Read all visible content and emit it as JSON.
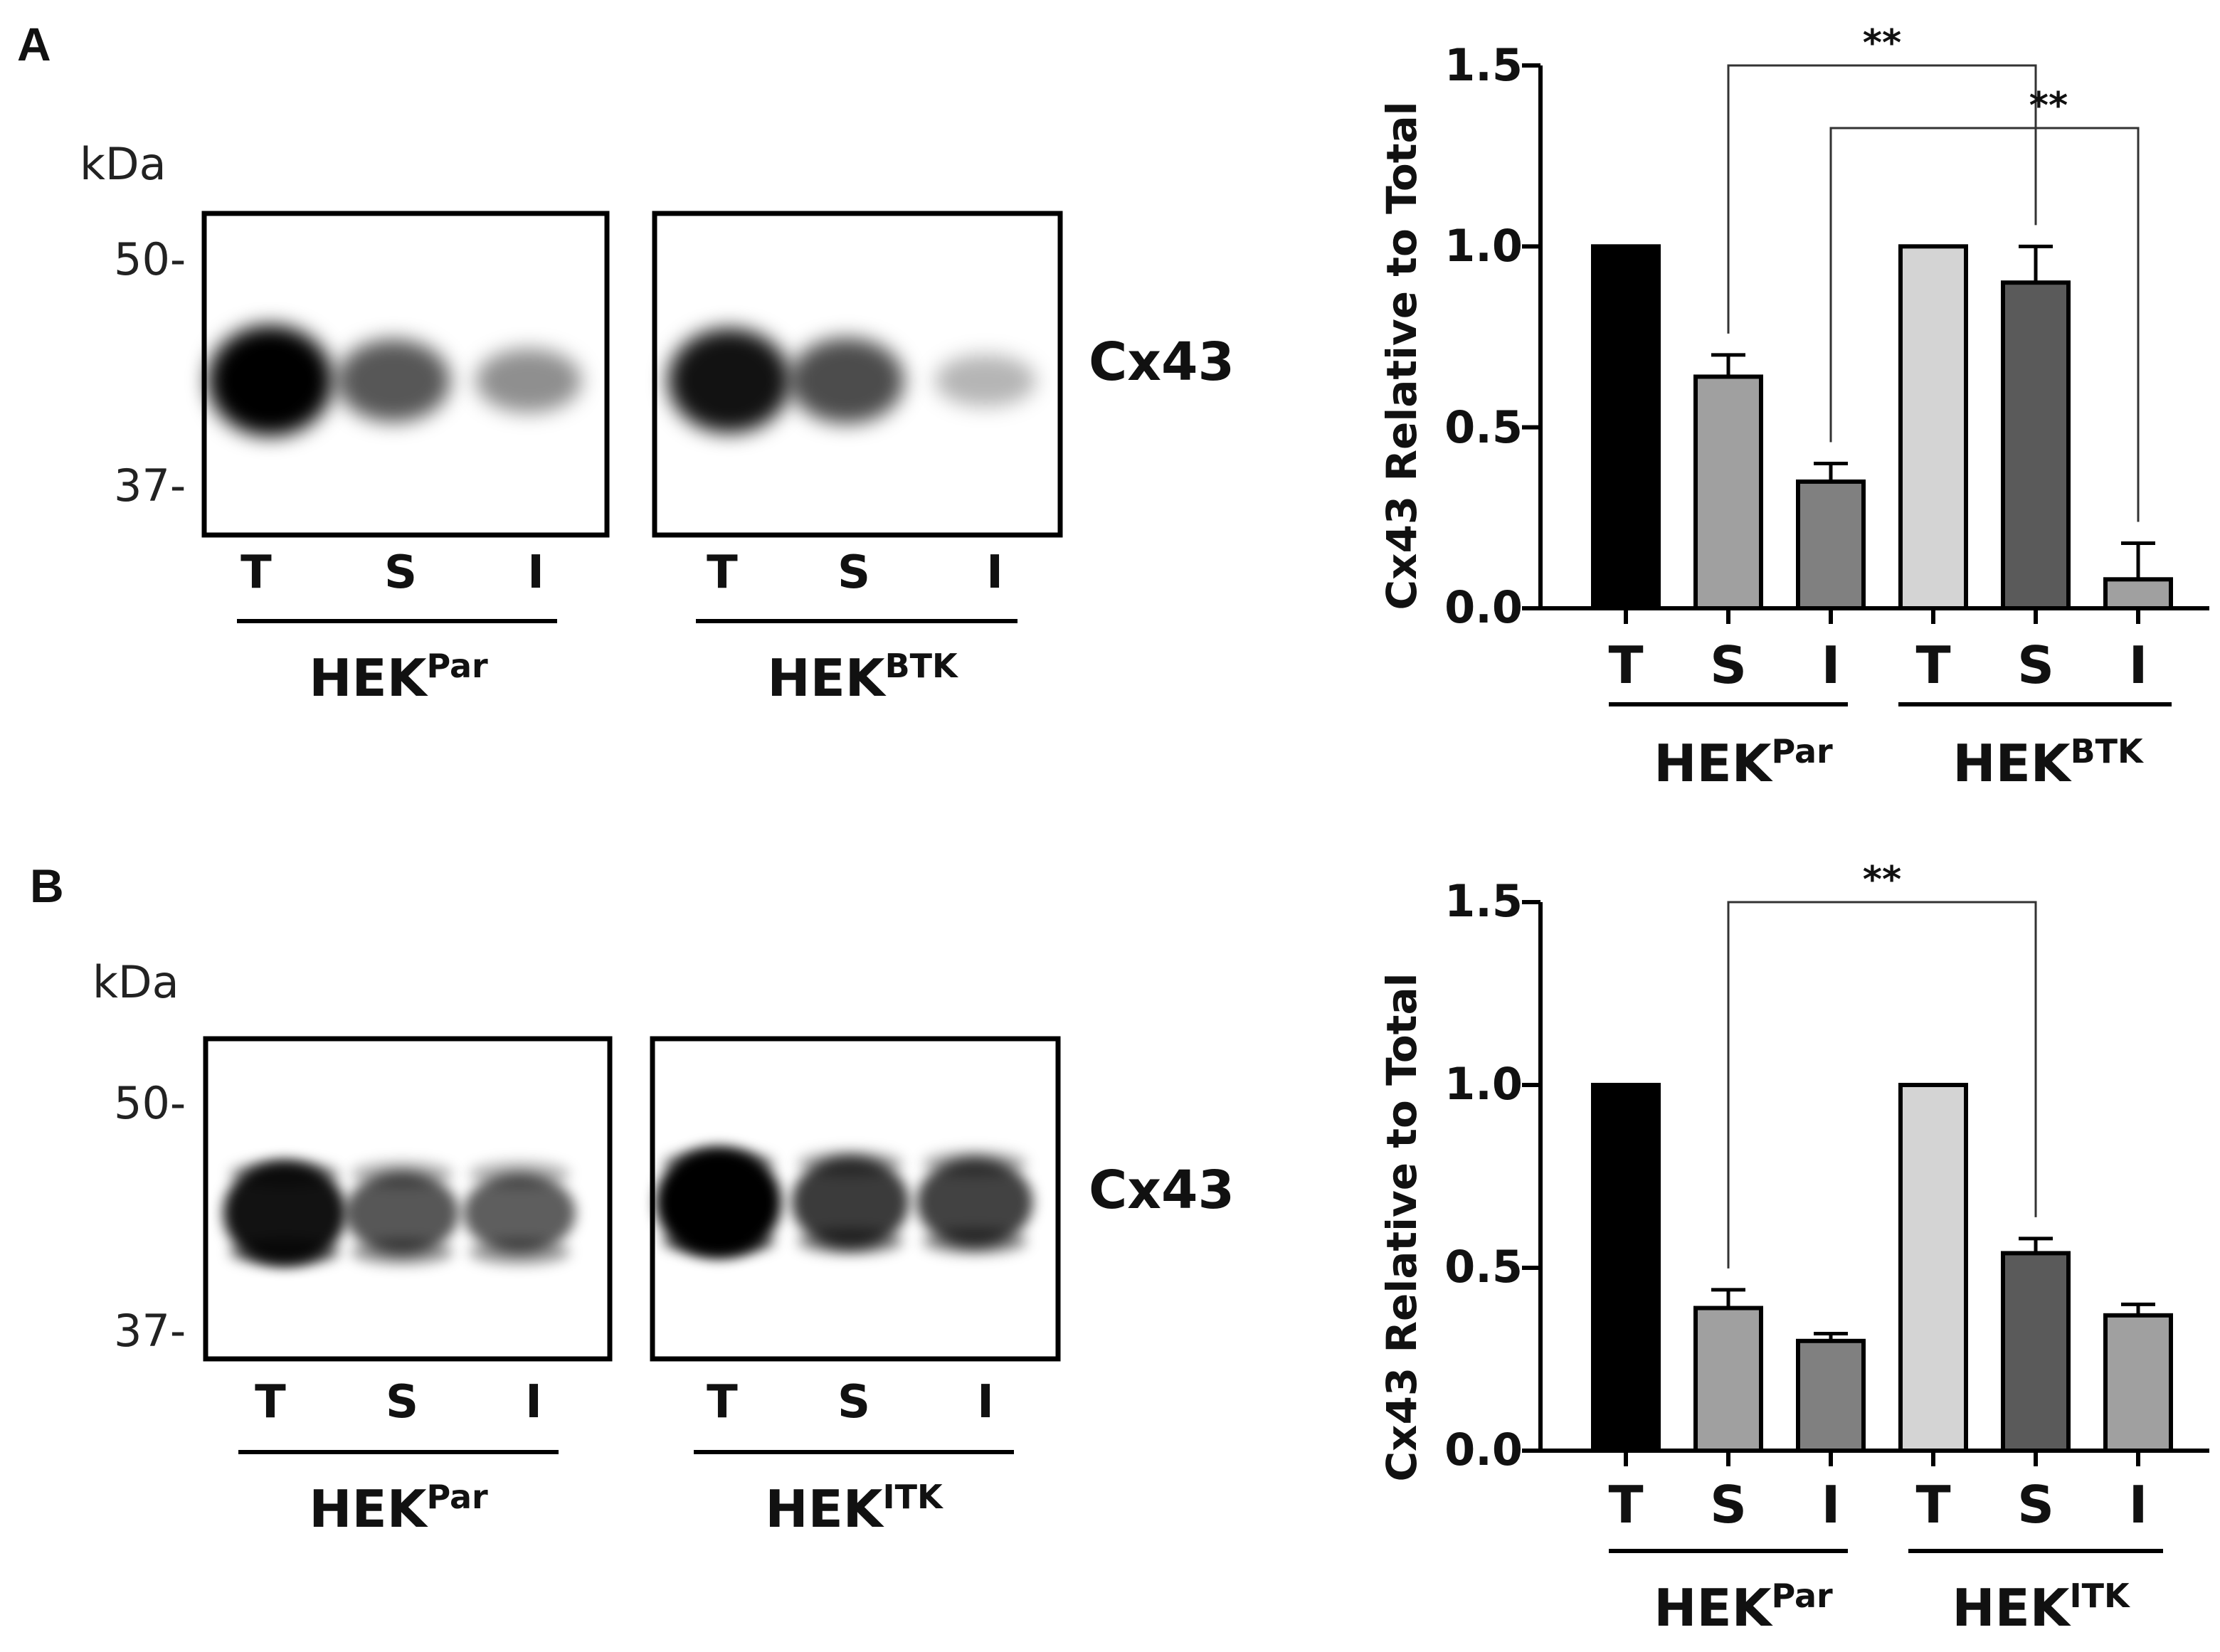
{
  "panels": [
    {
      "letter": "A",
      "blot": {
        "unit": "kDa",
        "markers": [
          "50-",
          "37-"
        ],
        "protein": "Cx43",
        "membranes": [
          {
            "lanes": [
              "T",
              "S",
              "I"
            ],
            "group": {
              "base": "HEK",
              "sup": "Par"
            },
            "bands": [
              {
                "lane": 0,
                "intensity": 1.0
              },
              {
                "lane": 1,
                "intensity": 0.55
              },
              {
                "lane": 2,
                "intensity": 0.25
              }
            ]
          },
          {
            "lanes": [
              "T",
              "S",
              "I"
            ],
            "group": {
              "base": "HEK",
              "sup": "BTK"
            },
            "bands": [
              {
                "lane": 0,
                "intensity": 0.9
              },
              {
                "lane": 1,
                "intensity": 0.6
              },
              {
                "lane": 2,
                "intensity": 0.06
              }
            ]
          }
        ]
      },
      "chart_data": {
        "type": "bar",
        "ylabel": "Cx43 Relative to Total",
        "ylim": [
          0,
          1.5
        ],
        "yticks": [
          "0.0",
          "0.5",
          "1.0",
          "1.5"
        ],
        "categories": [
          "T",
          "S",
          "I",
          "T",
          "S",
          "I"
        ],
        "groups": [
          {
            "base": "HEK",
            "sup": "Par"
          },
          {
            "base": "HEK",
            "sup": "BTK"
          }
        ],
        "values": [
          1.0,
          0.64,
          0.35,
          1.0,
          0.9,
          0.08
        ],
        "errors": [
          0.0,
          0.06,
          0.05,
          0.0,
          0.1,
          0.1
        ],
        "colors": [
          "#000000",
          "#a0a0a0",
          "#808080",
          "#d4d4d4",
          "#5a5a5a",
          "#a0a0a0"
        ],
        "significance": [
          {
            "from": 1,
            "to": 4,
            "label": "**"
          },
          {
            "from": 2,
            "to": 5,
            "label": "**"
          }
        ]
      }
    },
    {
      "letter": "B",
      "blot": {
        "unit": "kDa",
        "markers": [
          "50-",
          "37-"
        ],
        "protein": "Cx43",
        "membranes": [
          {
            "lanes": [
              "T",
              "S",
              "I"
            ],
            "group": {
              "base": "HEK",
              "sup": "Par"
            },
            "bands": [
              {
                "lane": 0,
                "intensity": 0.9
              },
              {
                "lane": 1,
                "intensity": 0.55
              },
              {
                "lane": 2,
                "intensity": 0.5
              }
            ]
          },
          {
            "lanes": [
              "T",
              "S",
              "I"
            ],
            "group": {
              "base": "HEK",
              "sup": "ITK"
            },
            "bands": [
              {
                "lane": 0,
                "intensity": 1.0
              },
              {
                "lane": 1,
                "intensity": 0.7
              },
              {
                "lane": 2,
                "intensity": 0.65
              }
            ]
          }
        ]
      },
      "chart_data": {
        "type": "bar",
        "ylabel": "Cx43 Relative to Total",
        "ylim": [
          0,
          1.5
        ],
        "yticks": [
          "0.0",
          "0.5",
          "1.0",
          "1.5"
        ],
        "categories": [
          "T",
          "S",
          "I",
          "T",
          "S",
          "I"
        ],
        "groups": [
          {
            "base": "HEK",
            "sup": "Par"
          },
          {
            "base": "HEK",
            "sup": "ITK"
          }
        ],
        "values": [
          1.0,
          0.39,
          0.3,
          1.0,
          0.54,
          0.37
        ],
        "errors": [
          0.0,
          0.05,
          0.02,
          0.0,
          0.04,
          0.03
        ],
        "colors": [
          "#000000",
          "#a0a0a0",
          "#808080",
          "#d4d4d4",
          "#5a5a5a",
          "#a0a0a0"
        ],
        "significance": [
          {
            "from": 1,
            "to": 4,
            "label": "**"
          }
        ]
      }
    }
  ]
}
